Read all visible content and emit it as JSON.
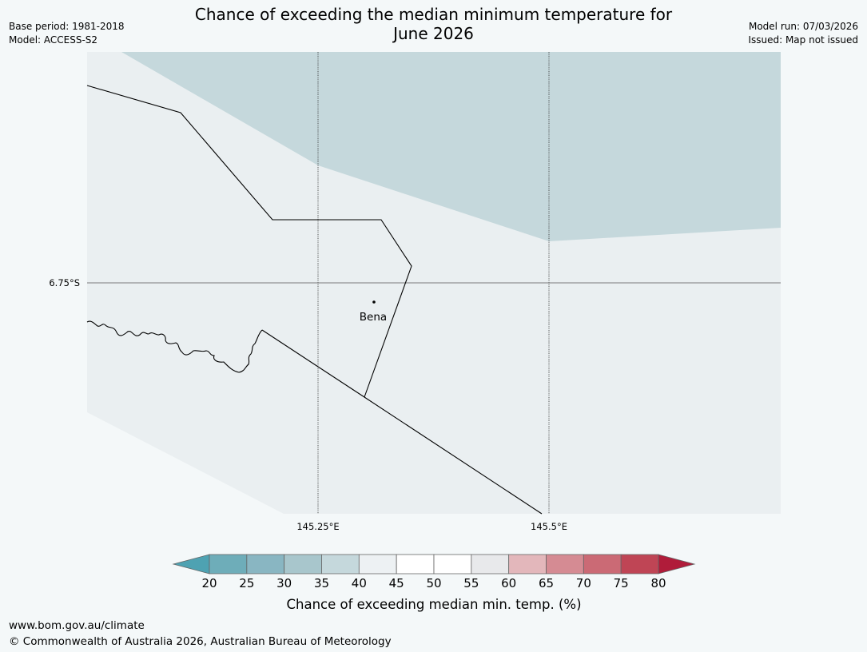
{
  "header": {
    "title_line1": "Chance of exceeding the median minimum temperature for",
    "title_line2": "June 2026",
    "base_period": "Base period: 1981-2018",
    "model": "Model: ACCESS-S2",
    "model_run": "Model run: 07/03/2026",
    "issued": "Issued: Map not issued"
  },
  "map": {
    "lat_labels": [
      "6.75°S"
    ],
    "lon_labels": [
      "145.25°E",
      "145.5°E"
    ],
    "place": "Bena",
    "colors": {
      "land": "#eaeff1",
      "band_35_40": "#c5d8dc",
      "border": "#000000",
      "graticule": "#7a7a7a"
    }
  },
  "colorbar": {
    "ticks": [
      "20",
      "25",
      "30",
      "35",
      "40",
      "45",
      "50",
      "55",
      "60",
      "65",
      "70",
      "75",
      "80"
    ],
    "colors": [
      "#6eadb9",
      "#89b6c2",
      "#a8c6cc",
      "#c5d8dc",
      "#edf1f3",
      "#ffffff",
      "#ffffff",
      "#e8e9eb",
      "#e3b7bb",
      "#d58b93",
      "#cb6a75",
      "#bf4555"
    ],
    "under_color": "#4ea2b2",
    "over_color": "#b01c3a",
    "label": "Chance of exceeding median min. temp. (%)"
  },
  "footer": {
    "url": "www.bom.gov.au/climate",
    "copyright": "© Commonwealth of Australia 2026, Australian Bureau of Meteorology"
  }
}
